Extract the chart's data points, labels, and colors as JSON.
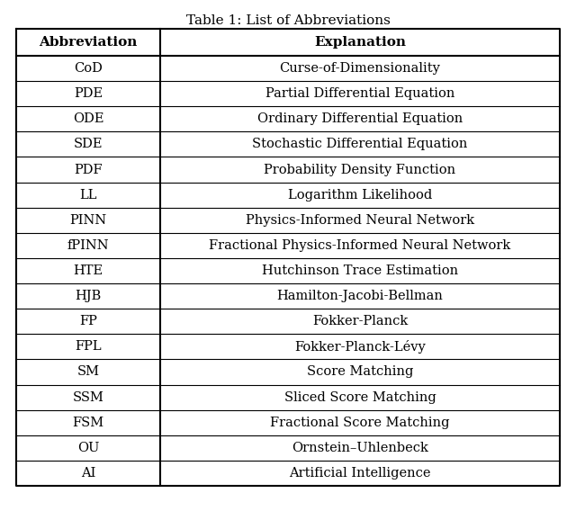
{
  "title": "Table 1: List of Abbreviations",
  "col_headers": [
    "Abbreviation",
    "Explanation"
  ],
  "rows": [
    [
      "CoD",
      "Curse-of-Dimensionality"
    ],
    [
      "PDE",
      "Partial Differential Equation"
    ],
    [
      "ODE",
      "Ordinary Differential Equation"
    ],
    [
      "SDE",
      "Stochastic Differential Equation"
    ],
    [
      "PDF",
      "Probability Density Function"
    ],
    [
      "LL",
      "Logarithm Likelihood"
    ],
    [
      "PINN",
      "Physics-Informed Neural Network"
    ],
    [
      "fPINN",
      "Fractional Physics-Informed Neural Network"
    ],
    [
      "HTE",
      "Hutchinson Trace Estimation"
    ],
    [
      "HJB",
      "Hamilton-Jacobi-Bellman"
    ],
    [
      "FP",
      "Fokker-Planck"
    ],
    [
      "FPL",
      "Fokker-Planck-Lévy"
    ],
    [
      "SM",
      "Score Matching"
    ],
    [
      "SSM",
      "Sliced Score Matching"
    ],
    [
      "FSM",
      "Fractional Score Matching"
    ],
    [
      "OU",
      "Ornstein–Uhlenbeck"
    ],
    [
      "AI",
      "Artificial Intelligence"
    ]
  ],
  "bg_color": "#ffffff",
  "text_color": "#000000",
  "border_color": "#000000",
  "title_fontsize": 11,
  "header_fontsize": 11,
  "cell_fontsize": 10.5
}
